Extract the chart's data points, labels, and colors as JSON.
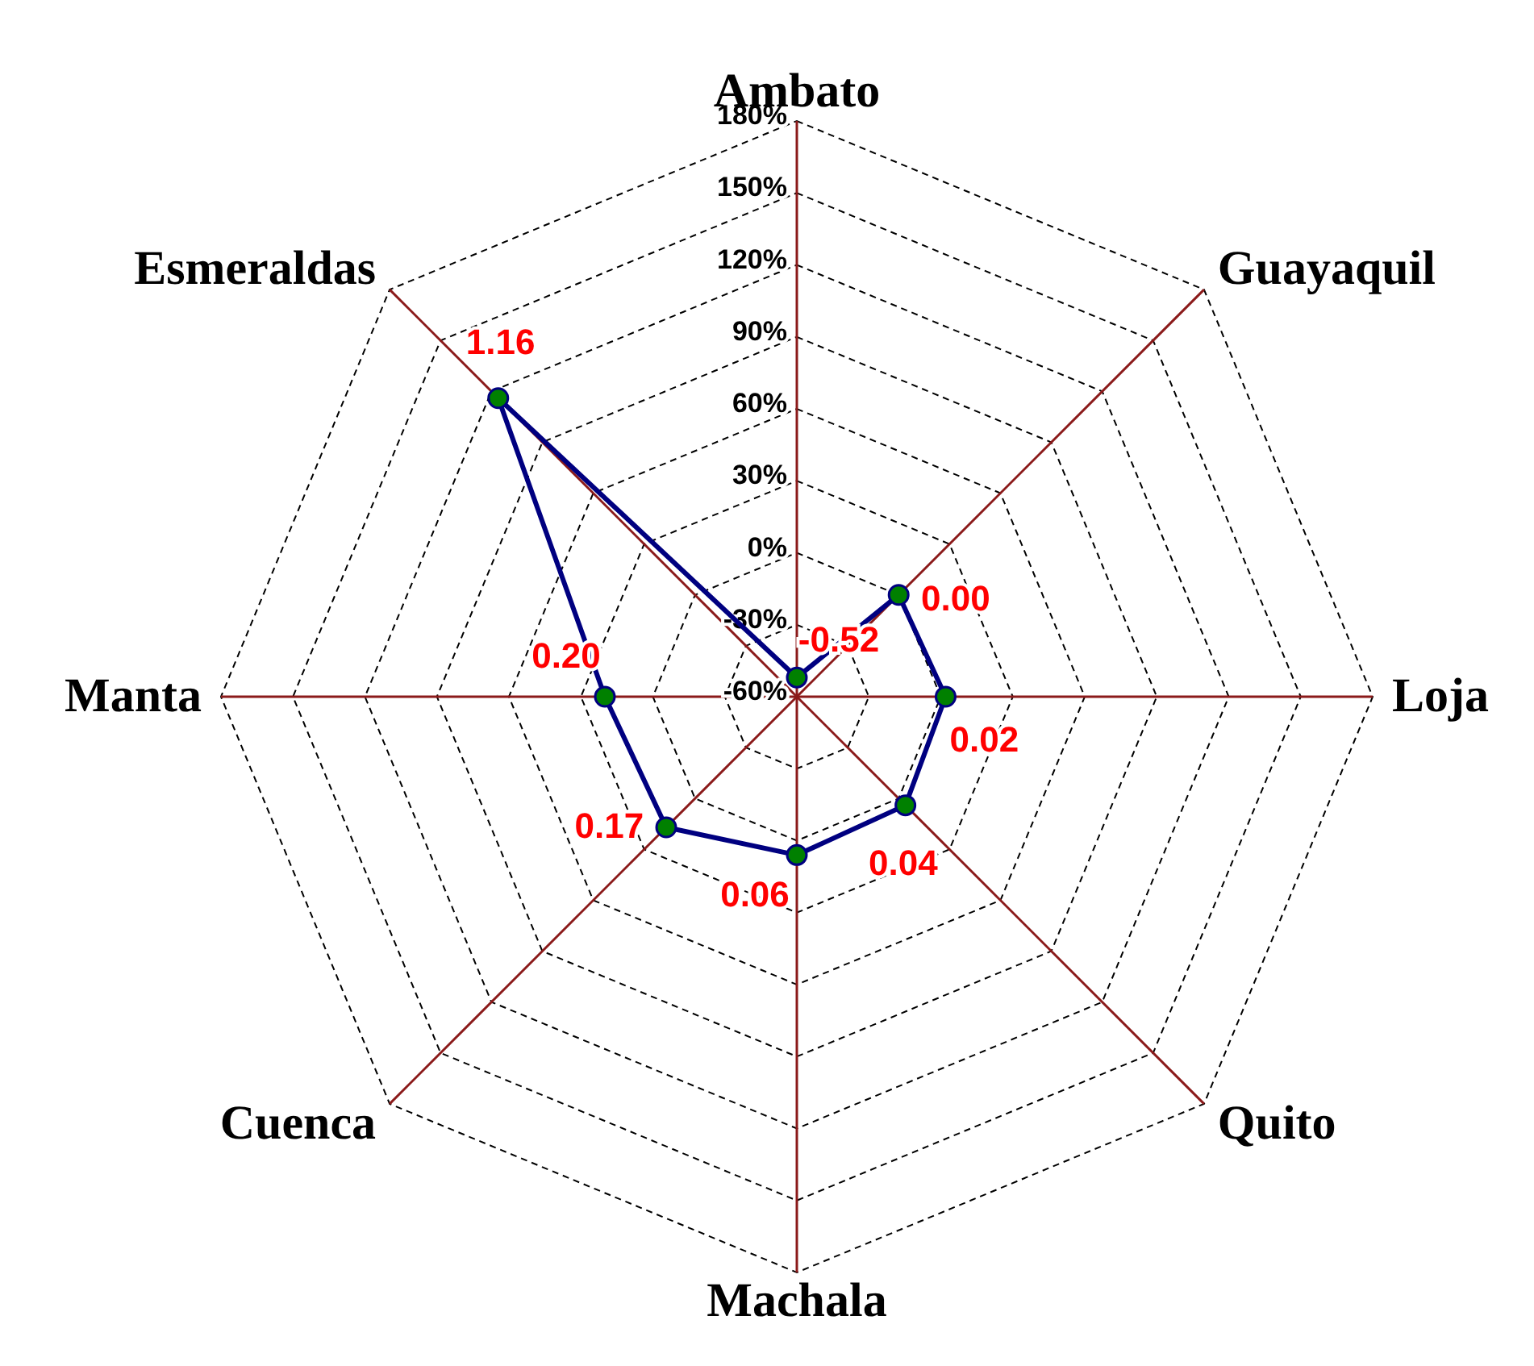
{
  "chart_data": {
    "type": "radar",
    "categories": [
      "Ambato",
      "Guayaquil",
      "Loja",
      "Quito",
      "Machala",
      "Cuenca",
      "Manta",
      "Esmeraldas"
    ],
    "series": [
      {
        "color": "#000080",
        "values": [
          -0.52,
          0.0,
          0.02,
          0.04,
          0.06,
          0.17,
          0.2,
          1.16
        ],
        "value_labels": [
          "-0.52",
          "0.00",
          "0.02",
          "0.04",
          "0.06",
          "0.17",
          "0.20",
          "1.16"
        ]
      }
    ],
    "ylim": [
      -0.6,
      1.8
    ],
    "yticks": [
      {
        "value": -0.6,
        "label": "-60%"
      },
      {
        "value": -0.3,
        "label": "-30%"
      },
      {
        "value": 0,
        "label": "0%"
      },
      {
        "value": 0.3,
        "label": "30%"
      },
      {
        "value": 0.6,
        "label": "60%"
      },
      {
        "value": 0.9,
        "label": "90%"
      },
      {
        "value": 1.2,
        "label": "120%"
      },
      {
        "value": 1.5,
        "label": "150%"
      },
      {
        "value": 1.8,
        "label": "180%"
      }
    ],
    "grid": true,
    "marker": "circle",
    "line_style": "solid"
  }
}
